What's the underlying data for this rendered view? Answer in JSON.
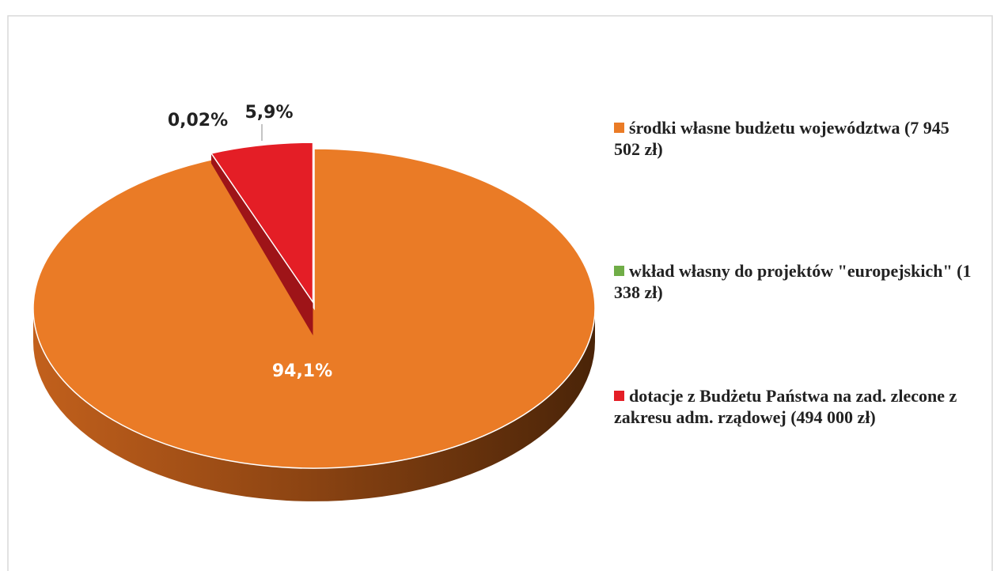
{
  "chart_data": {
    "type": "pie",
    "categories": [
      "środki własne budżetu województwa (7 945 502 zł)",
      "wkład własny do projektów \"europejskich\" (1 338 zł)",
      "dotacje z Budżetu Państwa na zad. zlecone z zakresu adm. rządowej (494 000 zł)"
    ],
    "values": [
      94.1,
      0.02,
      5.9
    ],
    "value_labels": [
      "94,1%",
      "0,02%",
      "5,9%"
    ],
    "colors": [
      "#ea7b26",
      "#70ad47",
      "#e41e26"
    ],
    "legend": "right"
  }
}
